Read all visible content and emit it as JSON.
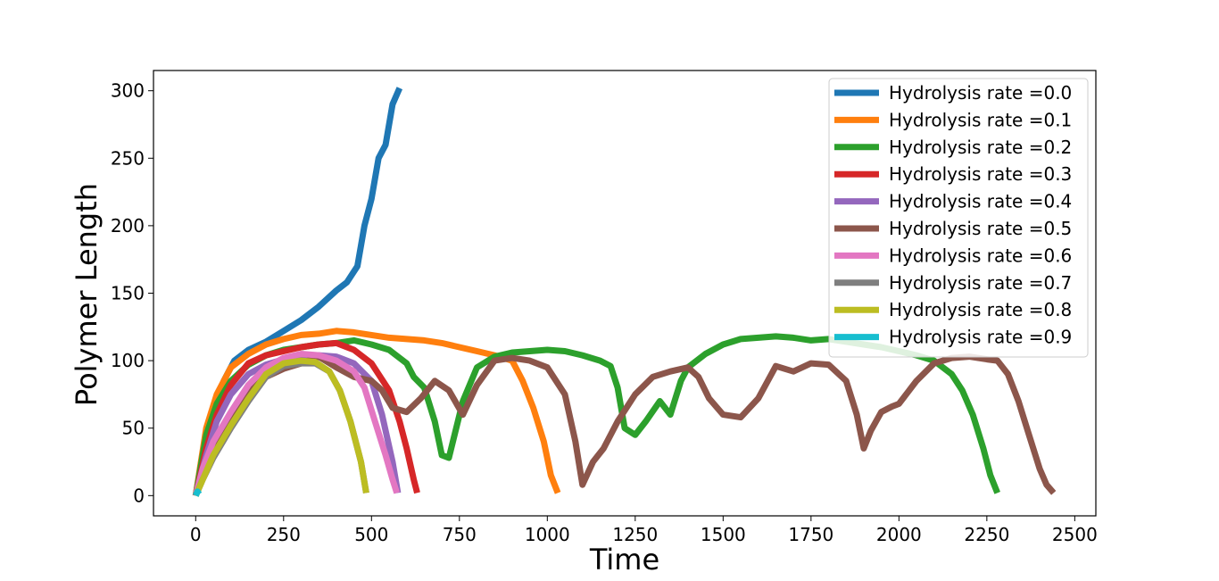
{
  "chart_data": {
    "type": "line",
    "title": "",
    "xlabel": "Time",
    "ylabel": "Polymer Length",
    "xlim": [
      -120,
      2560
    ],
    "ylim": [
      -15,
      315
    ],
    "xticks": [
      0,
      250,
      500,
      750,
      1000,
      1250,
      1500,
      1750,
      2000,
      2250,
      2500
    ],
    "yticks": [
      0,
      50,
      100,
      150,
      200,
      250,
      300
    ],
    "xtick_labels": [
      "0",
      "250",
      "500",
      "750",
      "1000",
      "1250",
      "1500",
      "1750",
      "2000",
      "2250",
      "2500"
    ],
    "ytick_labels": [
      "0",
      "50",
      "100",
      "150",
      "200",
      "250",
      "300"
    ],
    "grid": false,
    "legend_position": "top-right",
    "series": [
      {
        "name": "Hydrolysis rate =0.0",
        "color": "#1f77b4",
        "x": [
          0,
          20,
          50,
          80,
          110,
          150,
          200,
          250,
          300,
          350,
          400,
          430,
          460,
          480,
          500,
          520,
          540,
          560,
          580
        ],
        "y": [
          0,
          30,
          62,
          85,
          100,
          108,
          114,
          122,
          130,
          140,
          152,
          158,
          170,
          200,
          220,
          250,
          260,
          290,
          302
        ]
      },
      {
        "name": "Hydrolysis rate =0.1",
        "color": "#ff7f0e",
        "x": [
          0,
          30,
          60,
          100,
          150,
          200,
          250,
          300,
          350,
          400,
          450,
          500,
          550,
          600,
          650,
          700,
          750,
          800,
          850,
          900,
          930,
          960,
          990,
          1010,
          1030
        ],
        "y": [
          0,
          50,
          75,
          95,
          105,
          112,
          116,
          119,
          120,
          122,
          121,
          119,
          117,
          116,
          115,
          113,
          110,
          107,
          104,
          100,
          85,
          65,
          40,
          15,
          2
        ]
      },
      {
        "name": "Hydrolysis rate =0.2",
        "color": "#2ca02c",
        "x": [
          0,
          30,
          60,
          100,
          150,
          200,
          250,
          300,
          350,
          400,
          450,
          500,
          550,
          600,
          620,
          650,
          680,
          700,
          720,
          760,
          800,
          850,
          900,
          950,
          1000,
          1050,
          1100,
          1150,
          1180,
          1200,
          1220,
          1250,
          1280,
          1320,
          1350,
          1380,
          1400,
          1450,
          1500,
          1550,
          1600,
          1650,
          1700,
          1750,
          1800,
          1850,
          1900,
          1950,
          2000,
          2050,
          2100,
          2150,
          2180,
          2210,
          2240,
          2260,
          2280
        ],
        "y": [
          0,
          45,
          68,
          85,
          97,
          104,
          108,
          110,
          112,
          113,
          115,
          112,
          108,
          98,
          88,
          80,
          55,
          30,
          28,
          70,
          95,
          103,
          106,
          107,
          108,
          107,
          104,
          100,
          96,
          80,
          50,
          45,
          55,
          70,
          60,
          85,
          95,
          105,
          112,
          116,
          117,
          118,
          117,
          115,
          116,
          114,
          112,
          110,
          107,
          104,
          100,
          90,
          78,
          60,
          35,
          15,
          2
        ]
      },
      {
        "name": "Hydrolysis rate =0.3",
        "color": "#d62728",
        "x": [
          0,
          30,
          60,
          100,
          150,
          200,
          250,
          300,
          350,
          400,
          450,
          500,
          550,
          580,
          600,
          620,
          630
        ],
        "y": [
          0,
          35,
          60,
          82,
          98,
          104,
          107,
          110,
          112,
          113,
          108,
          98,
          78,
          55,
          35,
          12,
          2
        ]
      },
      {
        "name": "Hydrolysis rate =0.4",
        "color": "#9467bd",
        "x": [
          0,
          30,
          60,
          100,
          150,
          200,
          250,
          300,
          350,
          400,
          450,
          500,
          530,
          560,
          575
        ],
        "y": [
          0,
          30,
          55,
          75,
          90,
          97,
          101,
          103,
          104,
          103,
          98,
          85,
          60,
          25,
          2
        ]
      },
      {
        "name": "Hydrolysis rate =0.5",
        "color": "#8c564b",
        "x": [
          0,
          30,
          60,
          100,
          150,
          200,
          250,
          300,
          350,
          400,
          450,
          500,
          530,
          560,
          600,
          640,
          680,
          720,
          760,
          800,
          850,
          900,
          950,
          1000,
          1050,
          1080,
          1100,
          1130,
          1160,
          1200,
          1250,
          1300,
          1350,
          1400,
          1430,
          1460,
          1500,
          1550,
          1600,
          1650,
          1700,
          1750,
          1800,
          1850,
          1880,
          1900,
          1920,
          1950,
          1980,
          2000,
          2050,
          2100,
          2150,
          2200,
          2250,
          2280,
          2310,
          2340,
          2370,
          2400,
          2420,
          2440
        ],
        "y": [
          0,
          22,
          42,
          60,
          78,
          88,
          94,
          98,
          103,
          95,
          88,
          85,
          78,
          65,
          62,
          72,
          85,
          78,
          60,
          82,
          100,
          102,
          100,
          95,
          75,
          40,
          8,
          25,
          35,
          55,
          75,
          88,
          92,
          95,
          88,
          72,
          60,
          58,
          72,
          96,
          92,
          98,
          97,
          85,
          60,
          35,
          48,
          62,
          66,
          68,
          85,
          98,
          102,
          103,
          101,
          100,
          90,
          70,
          45,
          20,
          8,
          2
        ]
      },
      {
        "name": "Hydrolysis rate =0.6",
        "color": "#e377c2",
        "x": [
          0,
          20,
          50,
          100,
          150,
          200,
          250,
          300,
          350,
          400,
          450,
          480,
          510,
          540,
          560,
          572
        ],
        "y": [
          0,
          20,
          40,
          62,
          82,
          95,
          102,
          105,
          104,
          100,
          92,
          80,
          55,
          30,
          12,
          2
        ]
      },
      {
        "name": "Hydrolysis rate =0.7",
        "color": "#7f7f7f",
        "x": [
          0,
          20,
          50,
          100,
          150,
          200,
          250,
          300,
          340,
          380,
          410,
          440,
          470,
          485
        ],
        "y": [
          0,
          12,
          28,
          50,
          70,
          88,
          96,
          98,
          98,
          92,
          78,
          55,
          25,
          2
        ]
      },
      {
        "name": "Hydrolysis rate =0.8",
        "color": "#bcbd22",
        "x": [
          0,
          20,
          50,
          100,
          150,
          200,
          250,
          300,
          340,
          380,
          410,
          440,
          470,
          485
        ],
        "y": [
          0,
          12,
          30,
          52,
          72,
          90,
          98,
          100,
          99,
          92,
          78,
          55,
          25,
          2
        ]
      },
      {
        "name": "Hydrolysis rate =0.9",
        "color": "#17becf",
        "x": [
          0,
          5,
          10
        ],
        "y": [
          0,
          3,
          1
        ]
      }
    ]
  }
}
